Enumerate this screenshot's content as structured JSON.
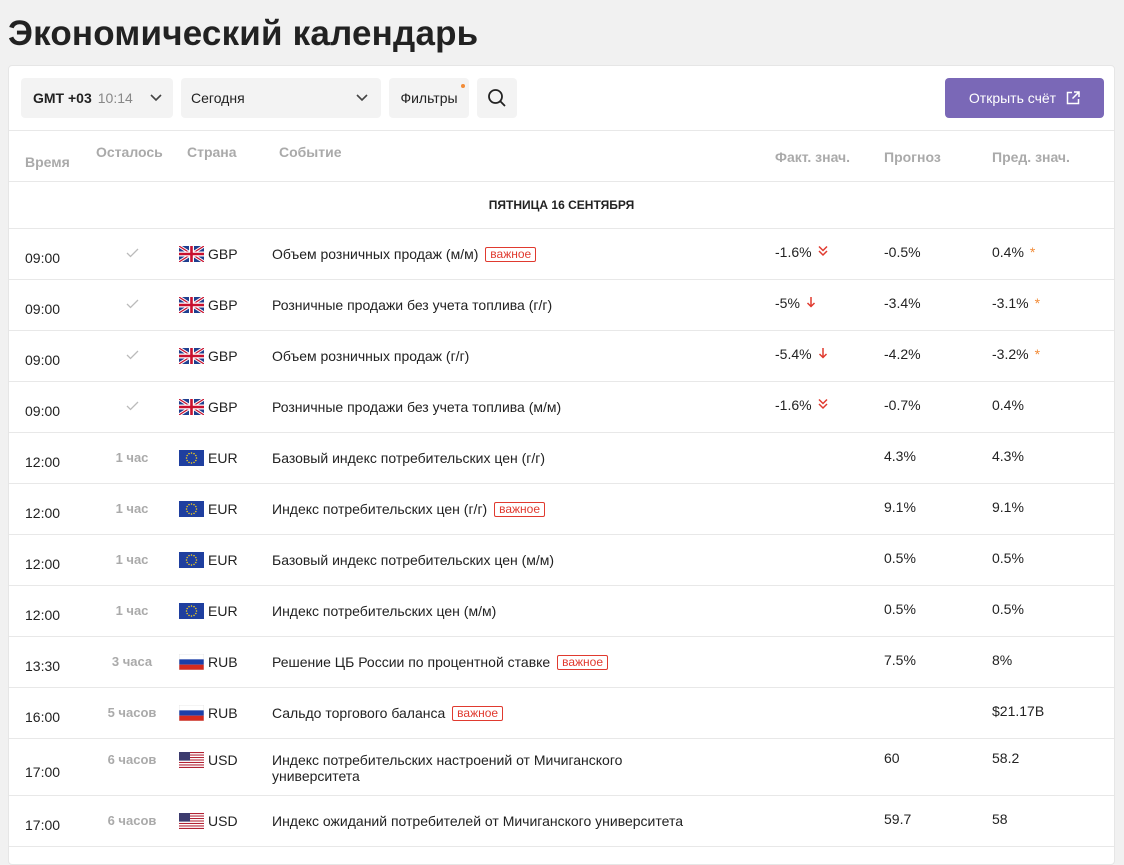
{
  "page_title": "Экономический календарь",
  "toolbar": {
    "tz_gmt": "GMT +03",
    "tz_time": "10:14",
    "date_select": "Сегодня",
    "filters_label": "Фильтры",
    "open_account_label": "Открыть счёт"
  },
  "columns": {
    "time": "Время",
    "remaining": "Осталось",
    "country": "Страна",
    "event": "Событие",
    "actual": "Факт. знач.",
    "forecast": "Прогноз",
    "previous": "Пред. знач."
  },
  "day_header": "ПЯТНИЦА 16 СЕНТЯБРЯ",
  "important_label": "важное",
  "colors": {
    "accent": "#7a68b7",
    "red": "#e03a2f",
    "orange": "#f28c38"
  },
  "rows": [
    {
      "time": "09:00",
      "remaining": "",
      "done": true,
      "flag": "gb",
      "currency": "GBP",
      "event": "Объем розничных продаж (м/м)",
      "important": true,
      "actual": "-1.6%",
      "actual_icon": "double-chevron-down-icon",
      "forecast": "-0.5%",
      "previous": "0.4%",
      "prev_star": true
    },
    {
      "time": "09:00",
      "remaining": "",
      "done": true,
      "flag": "gb",
      "currency": "GBP",
      "event": "Розничные продажи без учета топлива (г/г)",
      "important": false,
      "actual": "-5%",
      "actual_icon": "arrow-down-icon",
      "forecast": "-3.4%",
      "previous": "-3.1%",
      "prev_star": true
    },
    {
      "time": "09:00",
      "remaining": "",
      "done": true,
      "flag": "gb",
      "currency": "GBP",
      "event": "Объем розничных продаж (г/г)",
      "important": false,
      "actual": "-5.4%",
      "actual_icon": "arrow-down-icon",
      "forecast": "-4.2%",
      "previous": "-3.2%",
      "prev_star": true
    },
    {
      "time": "09:00",
      "remaining": "",
      "done": true,
      "flag": "gb",
      "currency": "GBP",
      "event": "Розничные продажи без учета топлива (м/м)",
      "important": false,
      "actual": "-1.6%",
      "actual_icon": "double-chevron-down-icon",
      "forecast": "-0.7%",
      "previous": "0.4%",
      "prev_star": false
    },
    {
      "time": "12:00",
      "remaining": "1 час",
      "done": false,
      "flag": "eu",
      "currency": "EUR",
      "event": "Базовый индекс потребительских цен (г/г)",
      "important": false,
      "actual": "",
      "actual_icon": "",
      "forecast": "4.3%",
      "previous": "4.3%",
      "prev_star": false
    },
    {
      "time": "12:00",
      "remaining": "1 час",
      "done": false,
      "flag": "eu",
      "currency": "EUR",
      "event": "Индекс потребительских цен (г/г)",
      "important": true,
      "actual": "",
      "actual_icon": "",
      "forecast": "9.1%",
      "previous": "9.1%",
      "prev_star": false
    },
    {
      "time": "12:00",
      "remaining": "1 час",
      "done": false,
      "flag": "eu",
      "currency": "EUR",
      "event": "Базовый индекс потребительских цен (м/м)",
      "important": false,
      "actual": "",
      "actual_icon": "",
      "forecast": "0.5%",
      "previous": "0.5%",
      "prev_star": false
    },
    {
      "time": "12:00",
      "remaining": "1 час",
      "done": false,
      "flag": "eu",
      "currency": "EUR",
      "event": "Индекс потребительских цен (м/м)",
      "important": false,
      "actual": "",
      "actual_icon": "",
      "forecast": "0.5%",
      "previous": "0.5%",
      "prev_star": false
    },
    {
      "time": "13:30",
      "remaining": "3 часа",
      "done": false,
      "flag": "ru",
      "currency": "RUB",
      "event": "Решение ЦБ России по процентной ставке",
      "important": true,
      "actual": "",
      "actual_icon": "",
      "forecast": "7.5%",
      "previous": "8%",
      "prev_star": false
    },
    {
      "time": "16:00",
      "remaining": "5 часов",
      "done": false,
      "flag": "ru",
      "currency": "RUB",
      "event": "Сальдо торгового баланса",
      "important": true,
      "actual": "",
      "actual_icon": "",
      "forecast": "",
      "previous": "$21.17B",
      "prev_star": false
    },
    {
      "time": "17:00",
      "remaining": "6 часов",
      "done": false,
      "flag": "us",
      "currency": "USD",
      "event": "Индекс потребительских настроений от Мичиганского университета",
      "important": false,
      "actual": "",
      "actual_icon": "",
      "forecast": "60",
      "previous": "58.2",
      "prev_star": false
    },
    {
      "time": "17:00",
      "remaining": "6 часов",
      "done": false,
      "flag": "us",
      "currency": "USD",
      "event": "Индекс ожиданий потребителей от Мичиганского университета",
      "important": false,
      "actual": "",
      "actual_icon": "",
      "forecast": "59.7",
      "previous": "58",
      "prev_star": false
    }
  ]
}
